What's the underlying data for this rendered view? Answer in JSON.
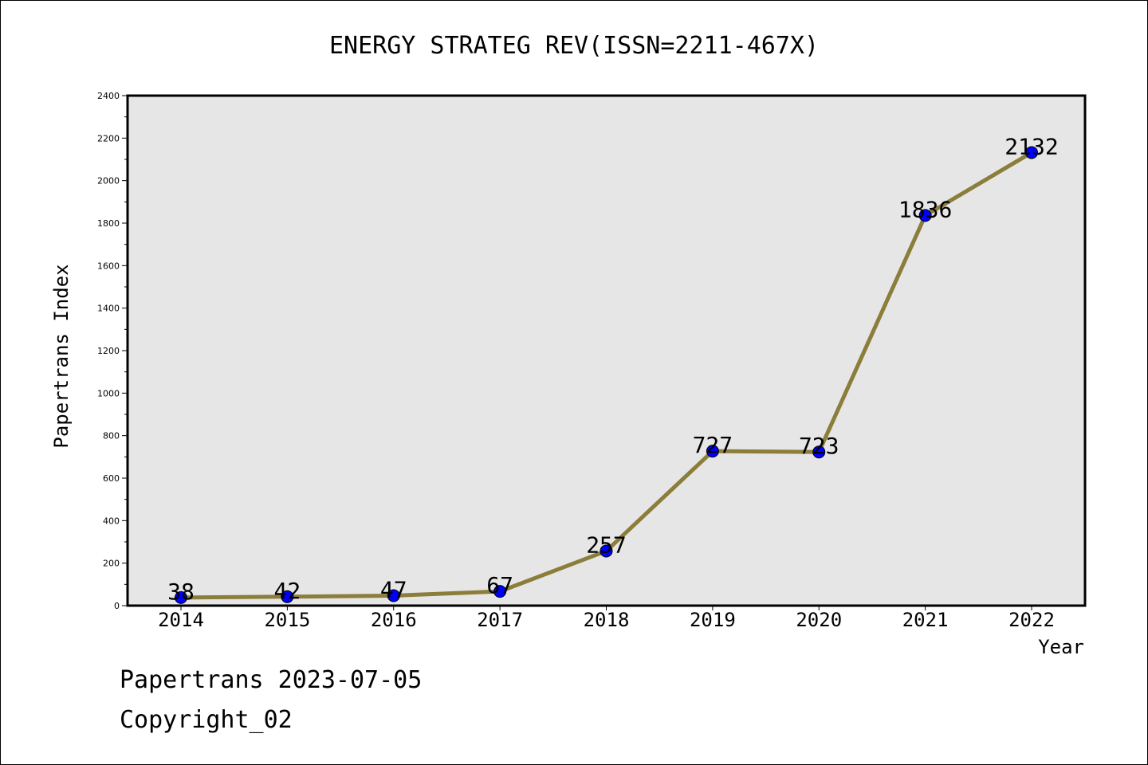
{
  "footer": {
    "stamp": "Papertrans 2023-07-05",
    "copyright": "Copyright_02"
  },
  "chart_data": {
    "type": "line",
    "title": "ENERGY STRATEG REV(ISSN=2211-467X)",
    "xlabel": "Year",
    "ylabel": "Papertrans Index",
    "categories": [
      "2014",
      "2015",
      "2016",
      "2017",
      "2018",
      "2019",
      "2020",
      "2021",
      "2022"
    ],
    "series": [
      {
        "values": [
          38,
          42,
          47,
          67,
          257,
          727,
          723,
          1836,
          2132
        ]
      }
    ],
    "data_labels": [
      "38",
      "42",
      "47",
      "67",
      "257",
      "727",
      "723",
      "1836",
      "2132"
    ],
    "ylim": [
      0,
      2400
    ],
    "yticks": [
      0,
      200,
      400,
      600,
      800,
      1000,
      1200,
      1400,
      1600,
      1800,
      2000,
      2200,
      2400
    ],
    "grid": false,
    "legend": "none",
    "colors": {
      "line": "#8B7D3A",
      "marker": "#0000FF",
      "plot_background": "#E6E6E6"
    }
  }
}
